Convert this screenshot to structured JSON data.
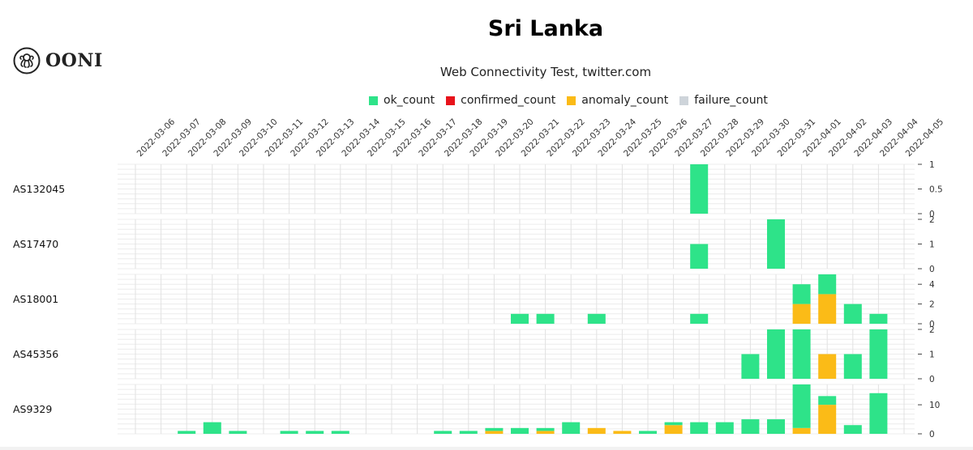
{
  "logo": {
    "text": "OONI",
    "icon": "ooni-octopus-icon"
  },
  "title": "Sri Lanka",
  "subtitle": "Web Connectivity Test, twitter.com",
  "legend": [
    {
      "label": "ok_count",
      "color": "#2ee389"
    },
    {
      "label": "confirmed_count",
      "color": "#e8131b"
    },
    {
      "label": "anomaly_count",
      "color": "#fbbb17"
    },
    {
      "label": "failure_count",
      "color": "#ced4da"
    }
  ],
  "chart_data": {
    "type": "bar",
    "stacked": true,
    "grid": true,
    "categories": [
      "2022-03-06",
      "2022-03-07",
      "2022-03-08",
      "2022-03-09",
      "2022-03-10",
      "2022-03-11",
      "2022-03-12",
      "2022-03-13",
      "2022-03-14",
      "2022-03-15",
      "2022-03-16",
      "2022-03-17",
      "2022-03-18",
      "2022-03-19",
      "2022-03-20",
      "2022-03-21",
      "2022-03-22",
      "2022-03-23",
      "2022-03-24",
      "2022-03-25",
      "2022-03-26",
      "2022-03-27",
      "2022-03-28",
      "2022-03-29",
      "2022-03-30",
      "2022-03-31",
      "2022-04-01",
      "2022-04-02",
      "2022-04-03",
      "2022-04-04",
      "2022-04-05"
    ],
    "rows": [
      {
        "label": "AS132045",
        "ylim": [
          0,
          1
        ],
        "ticks": [
          "0",
          "0.5",
          "1"
        ],
        "tick_values": [
          0,
          0.5,
          1
        ],
        "ok_count": [
          0,
          0,
          0,
          0,
          0,
          0,
          0,
          0,
          0,
          0,
          0,
          0,
          0,
          0,
          0,
          0,
          0,
          0,
          0,
          0,
          0,
          0,
          1,
          0,
          0,
          0,
          0,
          0,
          0,
          0,
          0
        ],
        "anomaly_count": [
          0,
          0,
          0,
          0,
          0,
          0,
          0,
          0,
          0,
          0,
          0,
          0,
          0,
          0,
          0,
          0,
          0,
          0,
          0,
          0,
          0,
          0,
          0,
          0,
          0,
          0,
          0,
          0,
          0,
          0,
          0
        ]
      },
      {
        "label": "AS17470",
        "ylim": [
          0,
          2
        ],
        "ticks": [
          "0",
          "1",
          "2"
        ],
        "tick_values": [
          0,
          1,
          2
        ],
        "ok_count": [
          0,
          0,
          0,
          0,
          0,
          0,
          0,
          0,
          0,
          0,
          0,
          0,
          0,
          0,
          0,
          0,
          0,
          0,
          0,
          0,
          0,
          0,
          1,
          0,
          0,
          2,
          0,
          0,
          0,
          0,
          0
        ],
        "anomaly_count": [
          0,
          0,
          0,
          0,
          0,
          0,
          0,
          0,
          0,
          0,
          0,
          0,
          0,
          0,
          0,
          0,
          0,
          0,
          0,
          0,
          0,
          0,
          0,
          0,
          0,
          0,
          0,
          0,
          0,
          0,
          0
        ]
      },
      {
        "label": "AS18001",
        "ylim": [
          0,
          5
        ],
        "ticks": [
          "0",
          "2",
          "4"
        ],
        "tick_values": [
          0,
          2,
          4
        ],
        "ok_count": [
          0,
          0,
          0,
          0,
          0,
          0,
          0,
          0,
          0,
          0,
          0,
          0,
          0,
          0,
          0,
          1,
          1,
          0,
          1,
          0,
          0,
          0,
          1,
          0,
          0,
          0,
          2,
          2,
          2,
          1,
          0
        ],
        "anomaly_count": [
          0,
          0,
          0,
          0,
          0,
          0,
          0,
          0,
          0,
          0,
          0,
          0,
          0,
          0,
          0,
          0,
          0,
          0,
          0,
          0,
          0,
          0,
          0,
          0,
          0,
          0,
          2,
          3,
          0,
          0,
          0
        ]
      },
      {
        "label": "AS45356",
        "ylim": [
          0,
          2
        ],
        "ticks": [
          "0",
          "1",
          "2"
        ],
        "tick_values": [
          0,
          1,
          2
        ],
        "ok_count": [
          0,
          0,
          0,
          0,
          0,
          0,
          0,
          0,
          0,
          0,
          0,
          0,
          0,
          0,
          0,
          0,
          0,
          0,
          0,
          0,
          0,
          0,
          0,
          0,
          1,
          2,
          2,
          0,
          1,
          2,
          0
        ],
        "anomaly_count": [
          0,
          0,
          0,
          0,
          0,
          0,
          0,
          0,
          0,
          0,
          0,
          0,
          0,
          0,
          0,
          0,
          0,
          0,
          0,
          0,
          0,
          0,
          0,
          0,
          0,
          0,
          0,
          1,
          0,
          0,
          0
        ]
      },
      {
        "label": "AS9329",
        "ylim": [
          0,
          17
        ],
        "ticks": [
          "0",
          "10"
        ],
        "tick_values": [
          0,
          10
        ],
        "ok_count": [
          0,
          0,
          1,
          4,
          1,
          0,
          1,
          1,
          1,
          0,
          0,
          0,
          1,
          1,
          1,
          2,
          1,
          4,
          0,
          0,
          1,
          1,
          4,
          4,
          5,
          5,
          15,
          3,
          3,
          14,
          0
        ],
        "anomaly_count": [
          0,
          0,
          0,
          0,
          0,
          0,
          0,
          0,
          0,
          0,
          0,
          0,
          0,
          0,
          1,
          0,
          1,
          0,
          2,
          1,
          0,
          3,
          0,
          0,
          0,
          0,
          2,
          10,
          0,
          0,
          0
        ]
      }
    ]
  }
}
